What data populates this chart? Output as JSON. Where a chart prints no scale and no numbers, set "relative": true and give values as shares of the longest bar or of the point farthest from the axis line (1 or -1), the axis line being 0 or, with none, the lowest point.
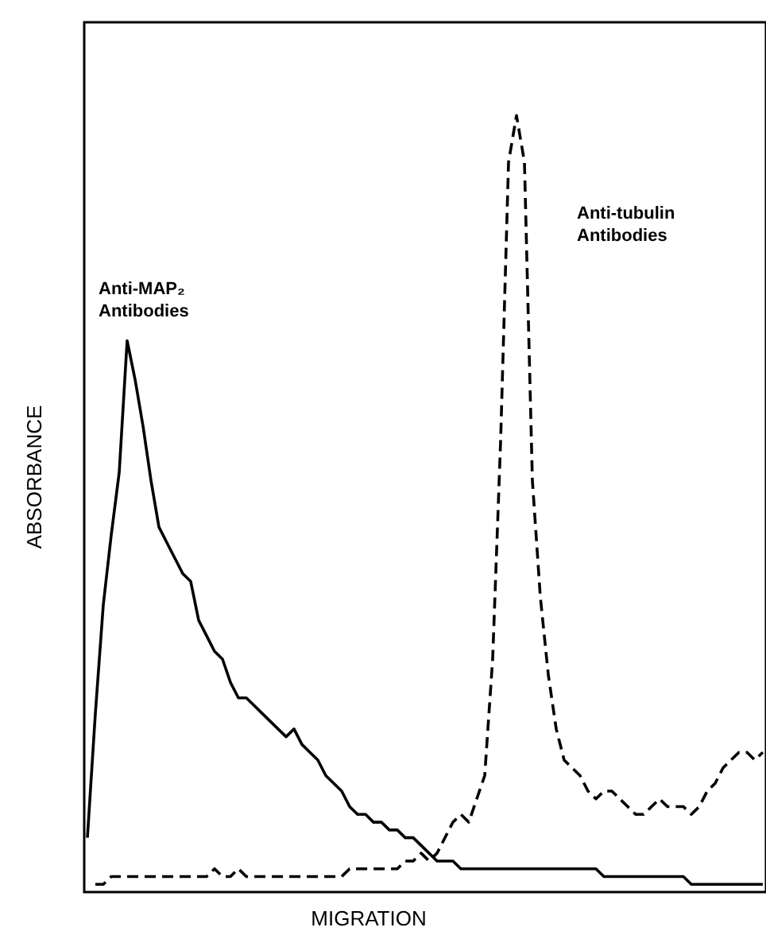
{
  "chart_data": {
    "type": "line",
    "relative": true,
    "xlabel": "MIGRATION",
    "ylabel": "ABSORBANCE",
    "tick_labels": false,
    "grid": false,
    "categories": [
      null,
      null,
      null,
      null,
      null,
      null,
      null,
      null,
      null,
      null,
      null,
      null,
      null,
      null,
      null,
      null,
      null,
      null,
      null,
      null,
      null,
      null,
      null,
      null,
      null,
      null,
      null,
      null,
      null,
      null,
      null,
      null,
      null,
      null,
      null,
      null,
      null,
      null,
      null,
      null,
      null,
      null,
      null,
      null,
      null,
      null,
      null,
      null,
      null,
      null,
      null,
      null,
      null,
      null,
      null,
      null,
      null,
      null,
      null,
      null,
      null,
      null,
      null,
      null,
      null,
      null,
      null,
      null,
      null,
      null,
      null,
      null,
      null,
      null,
      null,
      null,
      null,
      null,
      null,
      null,
      null,
      null,
      null,
      null,
      null,
      null
    ],
    "series": [
      {
        "color": "#000000",
        "line_style": "solid",
        "values": [
          0.07,
          0.23,
          0.37,
          0.46,
          0.54,
          0.71,
          0.66,
          0.6,
          0.53,
          0.47,
          0.45,
          0.43,
          0.41,
          0.4,
          0.35,
          0.33,
          0.31,
          0.3,
          0.27,
          0.25,
          0.25,
          0.24,
          0.23,
          0.22,
          0.21,
          0.2,
          0.21,
          0.19,
          0.18,
          0.17,
          0.15,
          0.14,
          0.13,
          0.11,
          0.1,
          0.1,
          0.09,
          0.09,
          0.08,
          0.08,
          0.07,
          0.07,
          0.06,
          0.05,
          0.04,
          0.04,
          0.04,
          0.03,
          0.03,
          0.03,
          0.03,
          0.03,
          0.03,
          0.03,
          0.03,
          0.03,
          0.03,
          0.03,
          0.03,
          0.03,
          0.03,
          0.03,
          0.03,
          0.03,
          0.03,
          0.02,
          0.02,
          0.02,
          0.02,
          0.02,
          0.02,
          0.02,
          0.02,
          0.02,
          0.02,
          0.02,
          0.01,
          0.01,
          0.01,
          0.01,
          0.01,
          0.01,
          0.01,
          0.01,
          0.01,
          0.01
        ]
      },
      {
        "color": "#000000",
        "line_style": "dashed",
        "values": [
          null,
          0.01,
          0.01,
          0.02,
          0.02,
          0.02,
          0.02,
          0.02,
          0.02,
          0.02,
          0.02,
          0.02,
          0.02,
          0.02,
          0.02,
          0.02,
          0.03,
          0.02,
          0.02,
          0.03,
          0.02,
          0.02,
          0.02,
          0.02,
          0.02,
          0.02,
          0.02,
          0.02,
          0.02,
          0.02,
          0.02,
          0.02,
          0.02,
          0.03,
          0.03,
          0.03,
          0.03,
          0.03,
          0.03,
          0.03,
          0.04,
          0.04,
          0.05,
          0.04,
          0.05,
          0.07,
          0.09,
          0.1,
          0.09,
          0.12,
          0.15,
          0.3,
          0.58,
          0.94,
          1,
          0.94,
          0.53,
          0.38,
          0.28,
          0.21,
          0.17,
          0.16,
          0.15,
          0.13,
          0.12,
          0.13,
          0.13,
          0.12,
          0.11,
          0.1,
          0.1,
          0.11,
          0.12,
          0.11,
          0.11,
          0.11,
          0.1,
          0.11,
          0.13,
          0.14,
          0.16,
          0.17,
          0.18,
          0.18,
          0.17,
          0.18
        ]
      }
    ],
    "annotations": [
      "Anti-MAP₂\nAntibodies",
      "Anti-tubulin\nAntibodies"
    ]
  }
}
